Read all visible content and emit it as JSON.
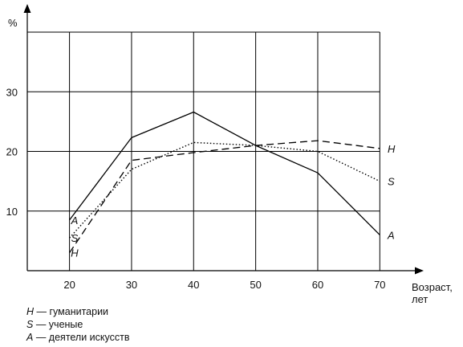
{
  "chart_data": {
    "type": "line",
    "ylabel": "%",
    "xlabel": "Возраст, лет",
    "xlabel_lines": [
      "Возраст,",
      "лет"
    ],
    "x": [
      20,
      30,
      40,
      50,
      60,
      70
    ],
    "xlim": [
      13.2,
      75
    ],
    "ylim": [
      0,
      40
    ],
    "x_ticks": [
      20,
      30,
      40,
      50,
      60,
      70
    ],
    "y_ticks": [
      10,
      20,
      30
    ],
    "grid": true,
    "series": [
      {
        "key": "H",
        "dash": "dashed",
        "values": [
          3.0,
          18.5,
          19.8,
          21.0,
          21.8,
          20.5
        ],
        "start_label": "H",
        "end_label": "H"
      },
      {
        "key": "S",
        "dash": "dotted",
        "values": [
          5.5,
          17.0,
          21.5,
          21.0,
          20.0,
          15.0
        ],
        "start_label": "S",
        "end_label": "S"
      },
      {
        "key": "A",
        "dash": "solid",
        "values": [
          8.5,
          22.3,
          26.6,
          21.0,
          16.4,
          6.0
        ],
        "start_label": "A",
        "end_label": "A"
      }
    ]
  },
  "legend": {
    "items": [
      {
        "key": "H",
        "text": "— гуманитарии"
      },
      {
        "key": "S",
        "text": "— ученые"
      },
      {
        "key": "A",
        "text": "— деятели искусств"
      }
    ]
  }
}
